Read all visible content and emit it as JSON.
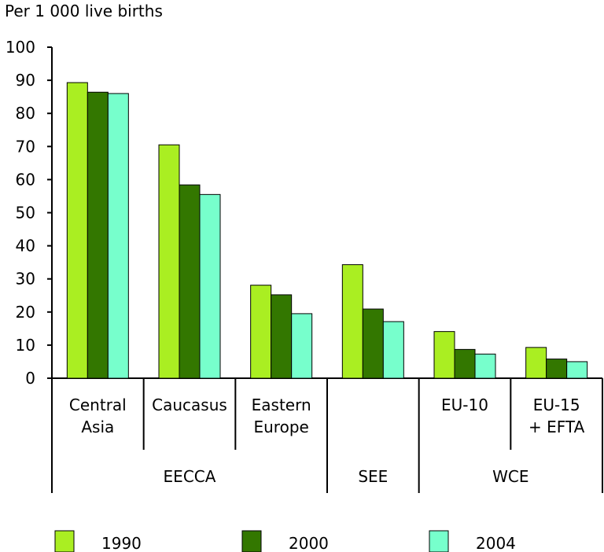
{
  "chart_data": {
    "type": "bar",
    "ylabel": "Per 1 000 live births",
    "ylim": [
      0,
      100
    ],
    "yticks": [
      0,
      10,
      20,
      30,
      40,
      50,
      60,
      70,
      80,
      90,
      100
    ],
    "grid": false,
    "legend_position": "bottom",
    "categories": [
      {
        "lines": [
          "Central",
          "Asia"
        ]
      },
      {
        "lines": [
          "Caucasus"
        ]
      },
      {
        "lines": [
          "Eastern",
          "Europe"
        ]
      },
      {
        "lines": [
          ""
        ]
      },
      {
        "lines": [
          "EU-10"
        ]
      },
      {
        "lines": [
          "EU-15",
          "+ EFTA"
        ]
      }
    ],
    "groups": [
      {
        "label": "EECCA",
        "span": [
          0,
          2
        ]
      },
      {
        "label": "SEE",
        "span": [
          3,
          3
        ]
      },
      {
        "label": "WCE",
        "span": [
          4,
          5
        ]
      }
    ],
    "series": [
      {
        "name": "1990",
        "color": "#aaee22",
        "values": [
          89.3,
          70.5,
          28.1,
          34.3,
          14.1,
          9.3
        ]
      },
      {
        "name": "2000",
        "color": "#337700",
        "values": [
          86.4,
          58.4,
          25.2,
          20.9,
          8.7,
          5.8
        ]
      },
      {
        "name": "2004",
        "color": "#77ffcc",
        "values": [
          86.0,
          55.5,
          19.5,
          17.1,
          7.3,
          5.0
        ]
      }
    ]
  }
}
